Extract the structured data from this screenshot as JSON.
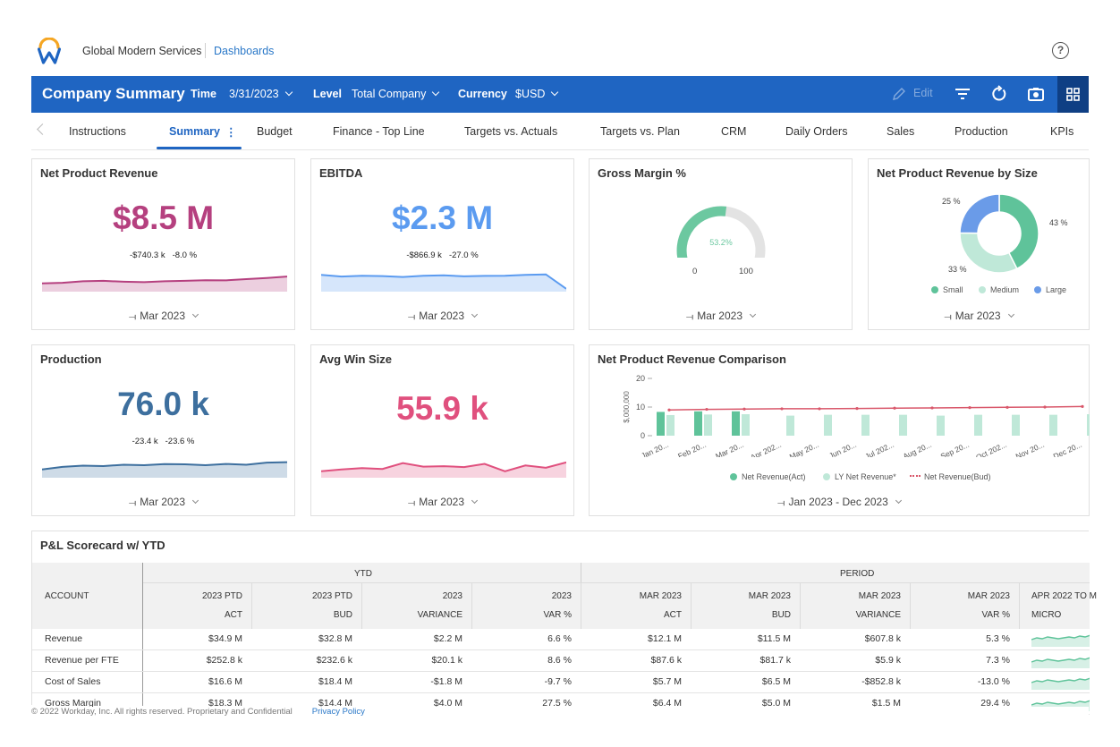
{
  "app": {
    "company": "Global Modern Services",
    "breadcrumb": "Dashboards",
    "help_icon": "question-circle-icon",
    "brand_colors": {
      "orange": "#f5a623",
      "blue": "#1f65c2"
    }
  },
  "header": {
    "title": "Company Summary",
    "time_label": "Time",
    "time_value": "3/31/2023",
    "level_label": "Level",
    "level_value": "Total Company",
    "currency_label": "Currency",
    "currency_value": "$USD",
    "edit_label": "Edit",
    "icons": [
      "pencil-icon",
      "filter-icon",
      "refresh-icon",
      "camera-icon",
      "grid-icon"
    ]
  },
  "tabs": [
    {
      "label": "Instructions"
    },
    {
      "label": "Summary",
      "active": true
    },
    {
      "label": "Budget"
    },
    {
      "label": "Finance - Top Line"
    },
    {
      "label": "Targets vs. Actuals"
    },
    {
      "label": "Targets vs. Plan"
    },
    {
      "label": "CRM"
    },
    {
      "label": "Daily Orders"
    },
    {
      "label": "Sales"
    },
    {
      "label": "Production"
    },
    {
      "label": "KPIs"
    }
  ],
  "cards": {
    "net_product_revenue": {
      "title": "Net Product Revenue",
      "value": "$8.5 M",
      "change_abs": "-$740.3 k",
      "change_pct": "-8.0 %",
      "period": "Mar 2023",
      "color": "#b5407f",
      "trend": [
        0.3,
        0.33,
        0.4,
        0.42,
        0.38,
        0.36,
        0.4,
        0.42,
        0.45,
        0.44,
        0.5,
        0.55,
        0.62
      ]
    },
    "ebitda": {
      "title": "EBITDA",
      "value": "$2.3 M",
      "change_abs": "-$866.9 k",
      "change_pct": "-27.0 %",
      "period": "Mar 2023",
      "color": "#5b9bf0",
      "trend": [
        0.7,
        0.62,
        0.66,
        0.64,
        0.6,
        0.66,
        0.68,
        0.63,
        0.65,
        0.66,
        0.7,
        0.72,
        0.05
      ]
    },
    "gross_margin": {
      "title": "Gross Margin %",
      "value_label": "53.2%",
      "value_pct": 53.2,
      "min": "0",
      "max": "100",
      "period": "Mar 2023",
      "color": "#6cc8a0"
    },
    "revenue_by_size": {
      "title": "Net Product Revenue by Size",
      "period": "Mar 2023",
      "slices": [
        {
          "name": "Small",
          "pct": 43,
          "label": "43 %",
          "color": "#5fc39a"
        },
        {
          "name": "Medium",
          "pct": 33,
          "label": "33 %",
          "color": "#bfe8d8"
        },
        {
          "name": "Large",
          "pct": 25,
          "label": "25 %",
          "color": "#6a9be8"
        }
      ]
    },
    "production": {
      "title": "Production",
      "value": "76.0 k",
      "change_abs": "-23.4 k",
      "change_pct": "-23.6 %",
      "period": "Mar 2023",
      "color": "#3d6f9e",
      "trend": [
        0.3,
        0.42,
        0.48,
        0.46,
        0.52,
        0.5,
        0.55,
        0.54,
        0.5,
        0.56,
        0.52,
        0.62,
        0.64
      ]
    },
    "avg_win_size": {
      "title": "Avg Win Size",
      "value": "55.9 k",
      "period": "Mar 2023",
      "color": "#e0507e",
      "trend": [
        0.2,
        0.28,
        0.34,
        0.3,
        0.55,
        0.4,
        0.42,
        0.38,
        0.52,
        0.2,
        0.45,
        0.35,
        0.58
      ]
    },
    "revenue_comparison": {
      "title": "Net Product Revenue Comparison",
      "period": "Jan 2023 - Dec 2023",
      "ylabel": "$,000,000"
    }
  },
  "chart_data": {
    "type": "bar",
    "title": "Net Product Revenue Comparison",
    "ylabel": "$,000,000",
    "ylim": [
      0,
      20
    ],
    "yticks": [
      "20",
      "10",
      "0"
    ],
    "categories": [
      "Jan 20...",
      "Feb 20...",
      "Mar 20...",
      "Apr 202...",
      "May 20...",
      "Jun 20...",
      "Jul 202...",
      "Aug 20...",
      "Sep 20...",
      "Oct 202...",
      "Nov 20...",
      "Dec 20..."
    ],
    "series": [
      {
        "name": "Net Revenue(Act)",
        "type": "bar",
        "color": "#5fc39a",
        "values": [
          8.3,
          8.5,
          8.5,
          null,
          null,
          null,
          null,
          null,
          null,
          null,
          null,
          null
        ]
      },
      {
        "name": "LY Net Revenue*",
        "type": "bar",
        "color": "#bfe8d8",
        "values": [
          7.2,
          7.4,
          7.5,
          7.0,
          7.3,
          7.3,
          7.3,
          7.0,
          7.3,
          7.3,
          7.3,
          7.5
        ]
      },
      {
        "name": "Net Revenue(Bud)",
        "type": "line",
        "color": "#d9586b",
        "values": [
          9.0,
          9.2,
          9.3,
          9.4,
          9.4,
          9.5,
          9.6,
          9.7,
          9.8,
          9.9,
          10.0,
          10.2
        ]
      }
    ],
    "legend": "bottom"
  },
  "scorecard": {
    "title": "P&L Scorecard w/ YTD",
    "group_ytd": "YTD",
    "group_period": "PERIOD",
    "account_header": "ACCOUNT",
    "columns": [
      {
        "l1": "2023 PTD",
        "l2": "ACT"
      },
      {
        "l1": "2023 PTD",
        "l2": "BUD"
      },
      {
        "l1": "2023",
        "l2": "VARIANCE"
      },
      {
        "l1": "2023",
        "l2": "VAR %"
      },
      {
        "l1": "MAR 2023",
        "l2": "ACT"
      },
      {
        "l1": "MAR 2023",
        "l2": "BUD"
      },
      {
        "l1": "MAR 2023",
        "l2": "VARIANCE"
      },
      {
        "l1": "MAR 2023",
        "l2": "VAR %"
      },
      {
        "l1": "APR 2022 TO M",
        "l2": "MICRO"
      }
    ],
    "rows": [
      {
        "account": "Revenue",
        "cells": [
          "$34.9 M",
          "$32.8 M",
          "$2.2 M",
          "6.6 %",
          "$12.1 M",
          "$11.5 M",
          "$607.8 k",
          "5.3 %"
        ]
      },
      {
        "account": "Revenue per FTE",
        "cells": [
          "$252.8 k",
          "$232.6 k",
          "$20.1 k",
          "8.6 %",
          "$87.6 k",
          "$81.7 k",
          "$5.9 k",
          "7.3 %"
        ]
      },
      {
        "account": "Cost of Sales",
        "cells": [
          "$16.6 M",
          "$18.4 M",
          "-$1.8 M",
          "-9.7 %",
          "$5.7 M",
          "$6.5 M",
          "-$852.8 k",
          "-13.0 %"
        ]
      },
      {
        "account": "Gross Margin",
        "cells": [
          "$18.3 M",
          "$14.4 M",
          "$4.0 M",
          "27.5 %",
          "$6.4 M",
          "$5.0 M",
          "$1.5 M",
          "29.4 %"
        ]
      }
    ]
  },
  "footer": {
    "legal": "© 2022 Workday, Inc. All rights reserved. Proprietary and Confidential",
    "privacy": "Privacy Policy"
  }
}
